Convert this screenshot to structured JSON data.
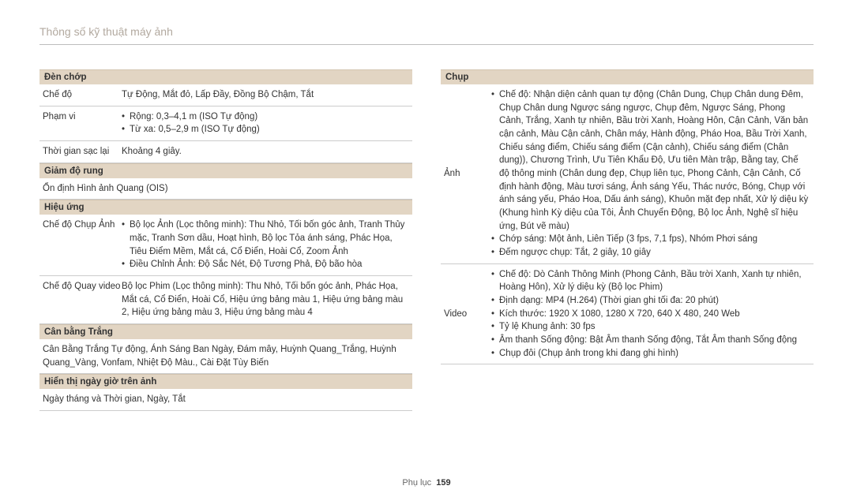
{
  "page": {
    "title": "Thông số kỹ thuật máy ảnh",
    "footer_label": "Phụ lục",
    "page_number": "159"
  },
  "left": {
    "flash": {
      "header": "Đèn chớp",
      "mode_label": "Chế độ",
      "mode_value": "Tự Động, Mắt đỏ, Lấp Đầy, Đồng Bộ Chậm, Tắt",
      "range_label": "Phạm vi",
      "range_wide": "Rộng: 0,3–4,1 m (ISO Tự động)",
      "range_tele": "Từ xa: 0,5–2,9 m (ISO Tự động)",
      "recharge_label": "Thời gian sạc lại",
      "recharge_value": "Khoảng 4 giây."
    },
    "is": {
      "header": "Giảm độ rung",
      "value": "Ổn định Hình ảnh Quang (OIS)"
    },
    "effect": {
      "header": "Hiệu ứng",
      "photo_label": "Chế độ Chụp Ảnh",
      "photo_b1": "Bộ lọc Ảnh (Lọc thông minh): Thu Nhỏ, Tối bốn góc ảnh, Tranh Thủy mặc, Tranh Sơn dầu, Hoạt hình, Bộ lọc Tỏa ánh sáng, Phác Họa, Tiêu Điểm Mềm, Mắt cá, Cổ Điển, Hoài Cổ, Zoom Ảnh",
      "photo_b2": "Điều Chỉnh Ảnh: Độ Sắc Nét, Độ Tương Phả, Độ bão hòa",
      "video_label": "Chế độ Quay video",
      "video_value": "Bộ lọc Phim (Lọc thông minh): Thu Nhỏ, Tối bốn góc ảnh, Phác Họa, Mắt cá, Cổ Điển, Hoài Cổ, Hiệu ứng bảng màu 1, Hiệu ứng bảng màu 2, Hiệu ứng bảng màu 3, Hiệu ứng bảng màu 4"
    },
    "wb": {
      "header": "Cân bằng Trắng",
      "value": "Cân Bằng Trắng Tự động, Ánh Sáng Ban Ngày, Đám mây, Huỳnh Quang_Trắng, Huỳnh Quang_Vàng, Vonfam, Nhiệt Độ Màu., Cài Đặt Tùy Biến"
    },
    "date": {
      "header": "Hiển thị ngày giờ trên ảnh",
      "value": "Ngày tháng và Thời gian, Ngày, Tắt"
    }
  },
  "right": {
    "shoot": {
      "header": "Chụp",
      "photo_label": "Ảnh",
      "photo_b1": "Chế độ: Nhận diện cảnh quan tự động (Chân Dung, Chụp Chân dung Đêm, Chụp Chân dung Ngược sáng ngược, Chụp đêm, Ngược Sáng, Phong Cảnh, Trắng, Xanh tự nhiên, Bầu trời Xanh, Hoàng Hôn, Cận Cảnh, Văn bản cận cảnh, Màu Cận cảnh, Chân máy, Hành động, Pháo Hoa, Bầu Trời Xanh, Chiếu sáng điểm, Chiếu sáng điểm (Cận cảnh), Chiếu sáng điểm (Chân dung)), Chương Trình, Ưu Tiên Khẩu Độ, Ưu tiên Màn trập, Bằng tay, Chế độ thông minh (Chân dung đẹp, Chụp liên tục, Phong Cảnh, Cận Cảnh, Cố định hành động, Màu tươi sáng, Ánh sáng Yếu, Thác nước, Bóng, Chụp với ánh sáng yếu, Pháo Hoa, Dấu ánh sáng), Khuôn mặt đẹp nhất, Xử lý diệu kỳ (Khung hình Kỳ diệu của Tôi, Ảnh Chuyển Động, Bộ lọc Ảnh, Nghệ sĩ hiệu ứng, Bút vẽ màu)",
      "photo_b2": "Chớp sáng: Một ảnh, Liên Tiếp (3 fps, 7,1 fps), Nhóm Phơi sáng",
      "photo_b3": "Đếm ngược chụp: Tắt, 2 giây, 10 giây",
      "video_label": "Video",
      "video_b1": "Chế độ: Dò Cảnh Thông Minh (Phong Cảnh, Bầu trời Xanh, Xanh tự nhiên, Hoàng Hôn), Xử lý diệu kỳ (Bộ lọc Phim)",
      "video_b2": "Định dạng: MP4 (H.264) (Thời gian ghi tối đa: 20 phút)",
      "video_b3": "Kích thước: 1920 X 1080, 1280 X 720, 640 X 480, 240 Web",
      "video_b4": "Tỷ lệ Khung ảnh: 30 fps",
      "video_b5": "Âm thanh Sống động: Bật Âm thanh Sống động, Tắt Âm thanh Sống động",
      "video_b6": "Chụp đôi (Chụp ảnh trong khi đang ghi hình)"
    }
  }
}
